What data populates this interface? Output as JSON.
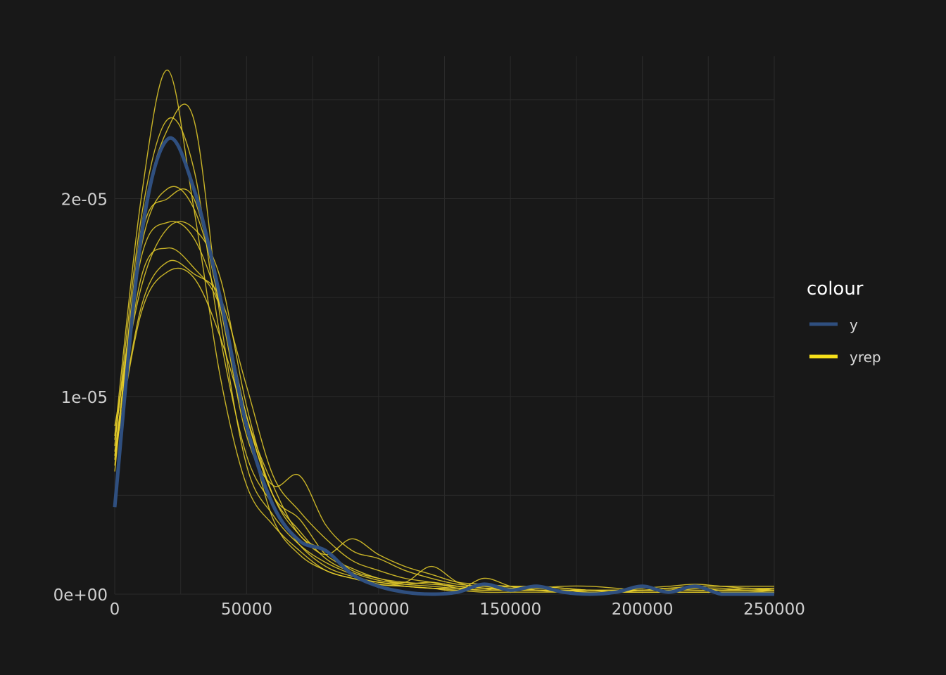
{
  "chart_data": {
    "type": "line",
    "title": "",
    "xlabel": "",
    "ylabel": "",
    "xlim": [
      0,
      250000
    ],
    "ylim": [
      0,
      2.72e-05
    ],
    "grid": true,
    "legend_position": "right",
    "x_ticks": [
      0,
      50000,
      100000,
      150000,
      200000,
      250000
    ],
    "x_tick_labels": [
      "0",
      "50000",
      "100000",
      "150000",
      "200000",
      "250000"
    ],
    "y_ticks": [
      0,
      1e-05,
      2e-05
    ],
    "y_tick_labels": [
      "0e+00",
      "1e-05",
      "2e-05"
    ],
    "legend": {
      "title": "colour",
      "entries": [
        {
          "label": "y",
          "color": "#2f4f7f"
        },
        {
          "label": "yrep",
          "color": "#f6e01a"
        }
      ]
    },
    "colors": {
      "y": "#2f4f7f",
      "yrep": "#e8cf2a",
      "background": "#181818",
      "grid": "#2a2a2a"
    },
    "x": [
      0,
      10000,
      20000,
      30000,
      40000,
      50000,
      60000,
      70000,
      80000,
      90000,
      100000,
      110000,
      120000,
      130000,
      140000,
      150000,
      160000,
      170000,
      180000,
      190000,
      200000,
      210000,
      220000,
      230000,
      240000,
      250000
    ],
    "series": [
      {
        "label": "y",
        "values": [
          4.4e-06,
          1.8e-05,
          2.3e-05,
          2.05e-05,
          1.5e-05,
          8.5e-06,
          4.5e-06,
          2.7e-06,
          2.2e-06,
          1e-06,
          4e-07,
          1e-07,
          0.0,
          1e-07,
          5e-07,
          2e-07,
          4e-07,
          1e-07,
          0.0,
          1e-07,
          4e-07,
          1e-07,
          4e-07,
          0.0,
          0.0,
          0.0
        ]
      },
      {
        "label": "yrep",
        "values": [
          8e-06,
          2e-05,
          2.65e-05,
          1.95e-05,
          1.1e-05,
          5.5e-06,
          3.5e-06,
          2.2e-06,
          1.2e-06,
          8e-07,
          5e-07,
          4e-07,
          3e-07,
          3e-07,
          2e-07,
          2e-07,
          2e-07,
          2e-07,
          1e-07,
          1e-07,
          2e-07,
          2e-07,
          3e-07,
          2e-07,
          2e-07,
          2e-07
        ]
      },
      {
        "label": "yrep",
        "values": [
          7.5e-06,
          1.9e-05,
          2.4e-05,
          2.15e-05,
          1.3e-05,
          7e-06,
          4.5e-06,
          2.5e-06,
          1.4e-06,
          9e-07,
          6e-07,
          5e-07,
          6e-07,
          4e-07,
          3e-07,
          3e-07,
          4e-07,
          3e-07,
          2e-07,
          2e-07,
          2e-07,
          3e-07,
          2e-07,
          2e-07,
          3e-07,
          2e-07
        ]
      },
      {
        "label": "yrep",
        "values": [
          6.8e-06,
          1.75e-05,
          2.05e-05,
          1.95e-05,
          1.5e-05,
          9e-06,
          5e-06,
          3.8e-06,
          2e-06,
          1.3e-06,
          8e-07,
          6e-07,
          5e-07,
          4e-07,
          3e-07,
          4e-07,
          3e-07,
          2e-07,
          2e-07,
          1e-07,
          2e-07,
          2e-07,
          2e-07,
          2e-07,
          2e-07,
          2e-07
        ]
      },
      {
        "label": "yrep",
        "values": [
          6.2e-06,
          1.8e-05,
          2e-05,
          2e-05,
          1.45e-05,
          8e-06,
          5.5e-06,
          6e-06,
          3.5e-06,
          2.2e-06,
          1.8e-06,
          1.2e-06,
          8e-07,
          5e-07,
          4e-07,
          3e-07,
          3e-07,
          2e-07,
          2e-07,
          2e-07,
          2e-07,
          2e-07,
          3e-07,
          3e-07,
          2e-07,
          3e-07
        ]
      },
      {
        "label": "yrep",
        "values": [
          8.5e-06,
          1.55e-05,
          1.85e-05,
          1.85e-05,
          1.6e-05,
          9.5e-06,
          5e-06,
          3e-06,
          2e-06,
          2.8e-06,
          2e-06,
          1.4e-06,
          1e-06,
          6e-07,
          5e-07,
          4e-07,
          4e-07,
          3e-07,
          2e-07,
          2e-07,
          3e-07,
          4e-07,
          5e-07,
          4e-07,
          3e-07,
          3e-07
        ]
      },
      {
        "label": "yrep",
        "values": [
          7e-06,
          1.45e-05,
          1.68e-05,
          1.62e-05,
          1.5e-05,
          1.05e-05,
          6e-06,
          4.2e-06,
          2.8e-06,
          1.7e-06,
          1.2e-06,
          8e-07,
          6e-07,
          3e-07,
          2e-07,
          4e-07,
          2e-07,
          1e-07,
          1e-07,
          1e-07,
          1e-07,
          1e-07,
          1e-07,
          1e-07,
          1e-07,
          1e-07
        ]
      },
      {
        "label": "yrep",
        "values": [
          7.2e-06,
          1.6e-05,
          1.75e-05,
          1.65e-05,
          1.45e-05,
          9e-06,
          5e-06,
          3.2e-06,
          1.8e-06,
          1.1e-06,
          7e-07,
          5e-07,
          4e-07,
          3e-07,
          4e-07,
          3e-07,
          3e-07,
          4e-07,
          4e-07,
          3e-07,
          2e-07,
          3e-07,
          4e-07,
          4e-07,
          4e-07,
          4e-07
        ]
      },
      {
        "label": "yrep",
        "values": [
          6.5e-06,
          1.85e-05,
          2.35e-05,
          2.4e-05,
          1.4e-05,
          6.5e-06,
          4e-06,
          2.5e-06,
          1.6e-06,
          1e-06,
          5e-07,
          4e-07,
          3e-07,
          2e-07,
          1e-07,
          1e-07,
          1e-07,
          1e-07,
          1e-07,
          1e-07,
          1e-07,
          1e-07,
          1e-07,
          1e-07,
          1e-07,
          1e-07
        ]
      },
      {
        "label": "yrep",
        "values": [
          7.8e-06,
          1.7e-05,
          1.88e-05,
          1.8e-05,
          1.45e-05,
          9e-06,
          5.5e-06,
          3e-06,
          2.2e-06,
          1.2e-06,
          8e-07,
          6e-07,
          1.4e-06,
          6e-07,
          3e-07,
          2e-07,
          2e-07,
          2e-07,
          2e-07,
          2e-07,
          2e-07,
          2e-07,
          3e-07,
          2e-07,
          2e-07,
          2e-07
        ]
      },
      {
        "label": "yrep",
        "values": [
          7e-06,
          1.42e-05,
          1.63e-05,
          1.6e-05,
          1.3e-05,
          8.5e-06,
          3.8e-06,
          2e-06,
          1.2e-06,
          8e-07,
          6e-07,
          4e-07,
          3e-07,
          2e-07,
          8e-07,
          4e-07,
          2e-07,
          2e-07,
          1e-07,
          1e-07,
          1e-07,
          1e-07,
          1e-07,
          1e-07,
          1e-07,
          2e-07
        ]
      }
    ]
  }
}
